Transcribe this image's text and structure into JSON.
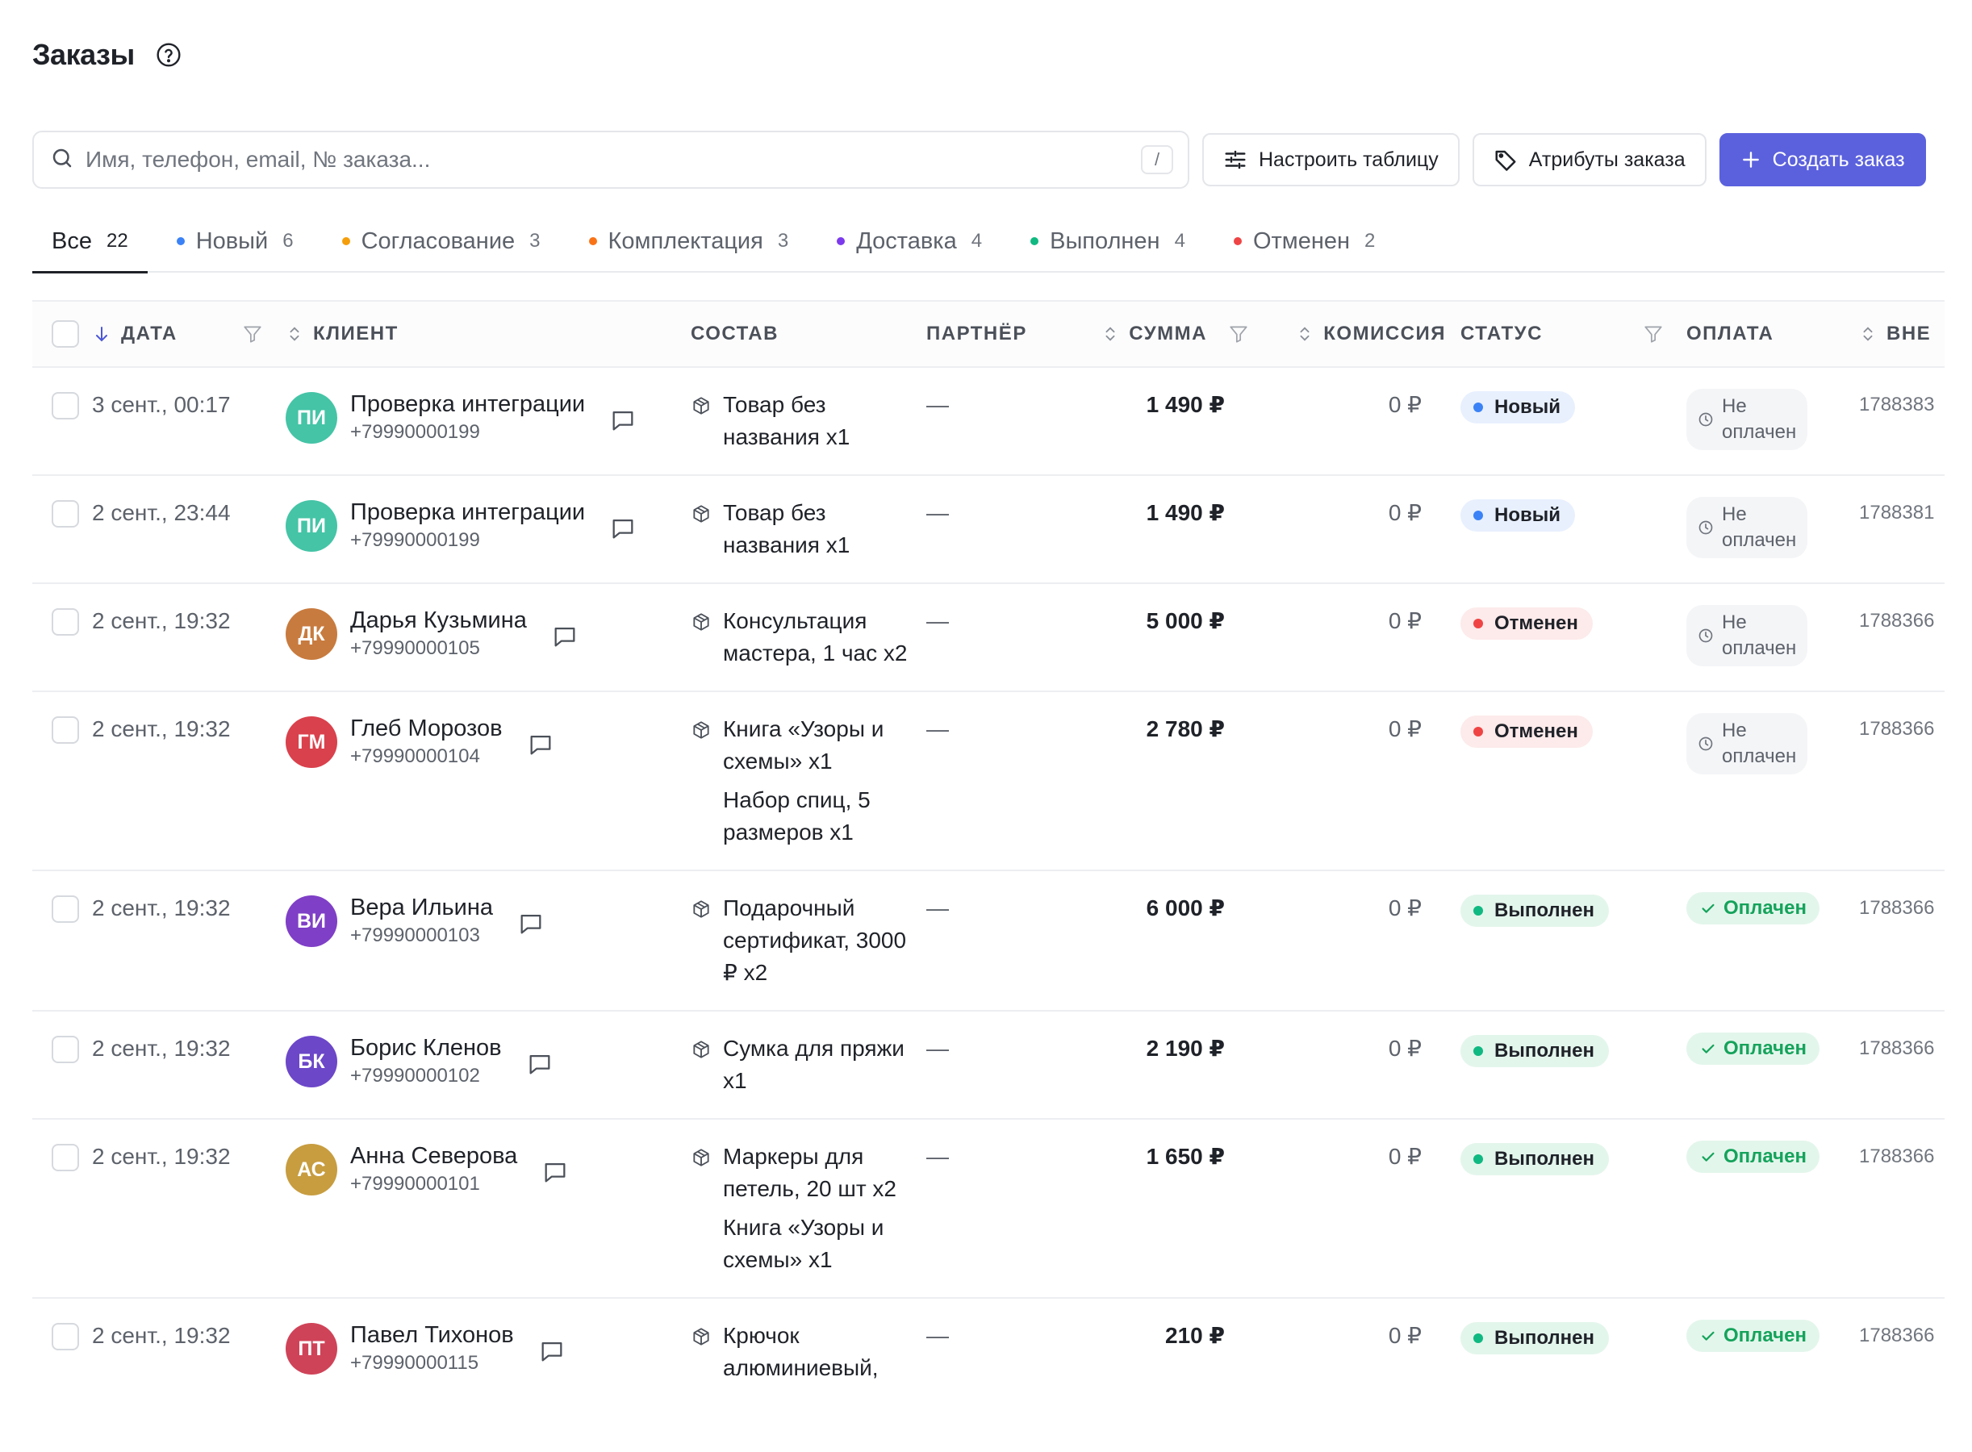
{
  "page": {
    "title": "Заказы",
    "help_icon": "question-circle-icon"
  },
  "toolbar": {
    "search_placeholder": "Имя, телефон, email, № заказа...",
    "search_value": "",
    "search_shortcut": "/",
    "configure_label": "Настроить таблицу",
    "attributes_label": "Атрибуты заказа",
    "create_label": "Создать заказ",
    "accent_color": "#5b61dd"
  },
  "tabs": [
    {
      "label": "Все",
      "count": "22",
      "dot": null
    },
    {
      "label": "Новый",
      "count": "6",
      "dot": "#3b82f6"
    },
    {
      "label": "Согласование",
      "count": "3",
      "dot": "#f59e0b"
    },
    {
      "label": "Комплектация",
      "count": "3",
      "dot": "#f97316"
    },
    {
      "label": "Доставка",
      "count": "4",
      "dot": "#7c3aed"
    },
    {
      "label": "Выполнен",
      "count": "4",
      "dot": "#10b981"
    },
    {
      "label": "Отменен",
      "count": "2",
      "dot": "#ef4444"
    }
  ],
  "columns": {
    "date": "ДАТА",
    "client": "КЛИЕНТ",
    "composition": "СОСТАВ",
    "partner": "ПАРТНЁР",
    "sum": "СУММА",
    "commission": "КОМИССИЯ",
    "status": "СТАТУС",
    "payment": "ОПЛАТА",
    "external": "ВНЕ"
  },
  "status_colors": {
    "Новый": {
      "bg": "#e8f0fe",
      "dot": "#3b82f6"
    },
    "Отменен": {
      "bg": "#fdeaea",
      "dot": "#ef4444"
    },
    "Выполнен": {
      "bg": "#e3f6ec",
      "dot": "#10b981"
    }
  },
  "orders": [
    {
      "date": "3 сент., 00:17",
      "initials": "ПИ",
      "avatar_color": "#45c4a6",
      "name": "Проверка интеграции",
      "phone": "+79990000199",
      "items": [
        "Товар без названия x1"
      ],
      "partner": "—",
      "sum": "1 490 ₽",
      "commission": "0 ₽",
      "status": "Новый",
      "payment": "Не оплачен",
      "paid": false,
      "ext": "1788383"
    },
    {
      "date": "2 сент., 23:44",
      "initials": "ПИ",
      "avatar_color": "#45c4a6",
      "name": "Проверка интеграции",
      "phone": "+79990000199",
      "items": [
        "Товар без названия x1"
      ],
      "partner": "—",
      "sum": "1 490 ₽",
      "commission": "0 ₽",
      "status": "Новый",
      "payment": "Не оплачен",
      "paid": false,
      "ext": "1788381"
    },
    {
      "date": "2 сент., 19:32",
      "initials": "ДК",
      "avatar_color": "#c87b3f",
      "name": "Дарья Кузьмина",
      "phone": "+79990000105",
      "items": [
        "Консультация мастера, 1 час x2"
      ],
      "partner": "—",
      "sum": "5 000 ₽",
      "commission": "0 ₽",
      "status": "Отменен",
      "payment": "Не оплачен",
      "paid": false,
      "ext": "1788366"
    },
    {
      "date": "2 сент., 19:32",
      "initials": "ГМ",
      "avatar_color": "#d9414c",
      "name": "Глеб Морозов",
      "phone": "+79990000104",
      "items": [
        "Книга «Узоры и схемы» x1",
        "Набор спиц, 5 размеров x1"
      ],
      "partner": "—",
      "sum": "2 780 ₽",
      "commission": "0 ₽",
      "status": "Отменен",
      "payment": "Не оплачен",
      "paid": false,
      "ext": "1788366"
    },
    {
      "date": "2 сент., 19:32",
      "initials": "ВИ",
      "avatar_color": "#7f3fc6",
      "name": "Вера Ильина",
      "phone": "+79990000103",
      "items": [
        "Подарочный сертификат, 3000 ₽ x2"
      ],
      "partner": "—",
      "sum": "6 000 ₽",
      "commission": "0 ₽",
      "status": "Выполнен",
      "payment": "Оплачен",
      "paid": true,
      "ext": "1788366"
    },
    {
      "date": "2 сент., 19:32",
      "initials": "БК",
      "avatar_color": "#6c47c8",
      "name": "Борис Кленов",
      "phone": "+79990000102",
      "items": [
        "Сумка для пряжи x1"
      ],
      "partner": "—",
      "sum": "2 190 ₽",
      "commission": "0 ₽",
      "status": "Выполнен",
      "payment": "Оплачен",
      "paid": true,
      "ext": "1788366"
    },
    {
      "date": "2 сент., 19:32",
      "initials": "АС",
      "avatar_color": "#c79d40",
      "name": "Анна Северова",
      "phone": "+79990000101",
      "items": [
        "Маркеры для петель, 20 шт x2",
        "Книга «Узоры и схемы» x1"
      ],
      "partner": "—",
      "sum": "1 650 ₽",
      "commission": "0 ₽",
      "status": "Выполнен",
      "payment": "Оплачен",
      "paid": true,
      "ext": "1788366"
    },
    {
      "date": "2 сент., 19:32",
      "initials": "ПТ",
      "avatar_color": "#cf4358",
      "name": "Павел Тихонов",
      "phone": "+79990000115",
      "items": [
        "Крючок алюминиевый,"
      ],
      "partner": "—",
      "sum": "210 ₽",
      "commission": "0 ₽",
      "status": "Выполнен",
      "payment": "Оплачен",
      "paid": true,
      "ext": "1788366"
    }
  ]
}
